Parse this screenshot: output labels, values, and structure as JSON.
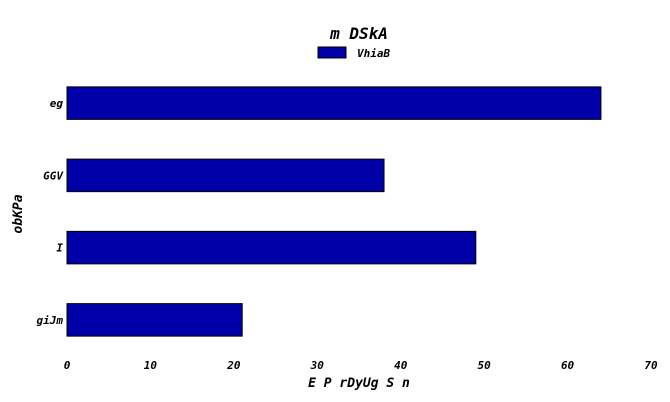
{
  "chart_data": {
    "type": "bar",
    "orientation": "horizontal",
    "title": "m  DSkA",
    "xlabel": "E  P rDyUg S n",
    "ylabel": "obKPa",
    "categories": [
      "eg",
      "GGV",
      "I",
      "giJm"
    ],
    "series": [
      {
        "name": "VhiaB",
        "values": [
          64,
          38,
          49,
          21
        ],
        "color": "#0000a8"
      }
    ],
    "xlim": [
      0,
      70
    ],
    "xticks": [
      0,
      10,
      20,
      30,
      40,
      50,
      60,
      70
    ],
    "grid": false,
    "legend_position": "top-center"
  }
}
